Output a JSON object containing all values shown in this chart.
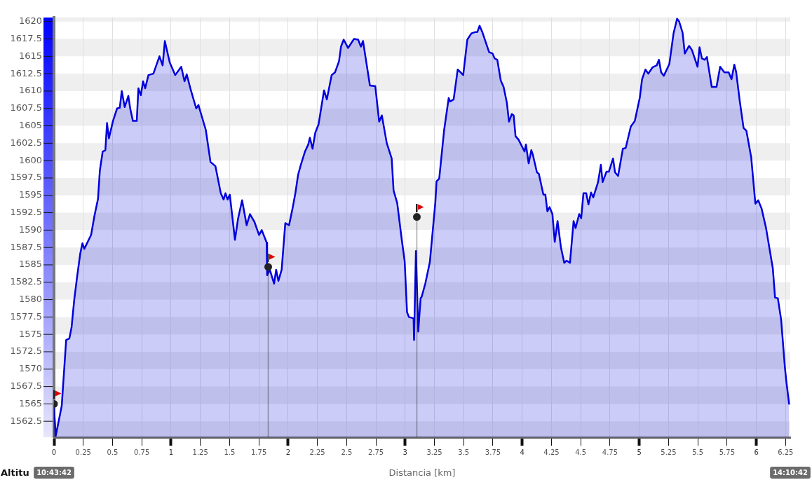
{
  "chart_data": {
    "type": "area",
    "xlabel": "Distancia [km]",
    "ylabel": "Altitu",
    "xlim": [
      0,
      6.29
    ],
    "ylim": [
      1560.2,
      1620.6
    ],
    "xticks": [
      0,
      0.25,
      0.5,
      0.75,
      1,
      1.25,
      1.5,
      1.75,
      2,
      2.25,
      2.5,
      2.75,
      3,
      3.25,
      3.5,
      3.75,
      4,
      4.25,
      4.5,
      4.75,
      5,
      5.25,
      5.5,
      5.75,
      6,
      6.25
    ],
    "yticks": [
      1562.5,
      1565,
      1567.5,
      1570,
      1572.5,
      1575,
      1577.5,
      1580,
      1582.5,
      1585,
      1587.5,
      1590,
      1592.5,
      1595,
      1597.5,
      1600,
      1602.5,
      1605,
      1607.5,
      1610,
      1612.5,
      1615,
      1617.5,
      1620
    ],
    "grid": true,
    "annotations": [
      "10:43:42",
      "14:10:42"
    ],
    "series": [
      {
        "color": "#0000dd",
        "x": [
          0,
          0.015,
          0.066,
          0.104,
          0.131,
          0.15,
          0.173,
          0.196,
          0.224,
          0.243,
          0.259,
          0.317,
          0.345,
          0.376,
          0.392,
          0.416,
          0.439,
          0.453,
          0.469,
          0.504,
          0.539,
          0.562,
          0.579,
          0.604,
          0.635,
          0.651,
          0.674,
          0.707,
          0.721,
          0.742,
          0.761,
          0.779,
          0.807,
          0.849,
          0.901,
          0.928,
          0.947,
          0.989,
          1.036,
          1.087,
          1.115,
          1.134,
          1.168,
          1.215,
          1.234,
          1.297,
          1.337,
          1.379,
          1.425,
          1.449,
          1.465,
          1.483,
          1.502,
          1.546,
          1.572,
          1.607,
          1.646,
          1.674,
          1.712,
          1.752,
          1.775,
          1.817,
          1.821,
          1.844,
          1.88,
          1.898,
          1.917,
          1.945,
          1.976,
          2.008,
          2.039,
          2.062,
          2.086,
          2.109,
          2.144,
          2.172,
          2.186,
          2.209,
          2.232,
          2.26,
          2.307,
          2.331,
          2.372,
          2.401,
          2.435,
          2.452,
          2.475,
          2.512,
          2.563,
          2.598,
          2.622,
          2.64,
          2.699,
          2.745,
          2.778,
          2.801,
          2.843,
          2.885,
          2.901,
          2.932,
          2.972,
          2.996,
          3.016,
          3.032,
          3.072,
          3.076,
          3.092,
          3.112,
          3.132,
          3.141,
          3.172,
          3.211,
          3.258,
          3.268,
          3.291,
          3.333,
          3.372,
          3.384,
          3.414,
          3.449,
          3.473,
          3.496,
          3.531,
          3.566,
          3.601,
          3.617,
          3.636,
          3.659,
          3.717,
          3.747,
          3.764,
          3.787,
          3.817,
          3.841,
          3.869,
          3.887,
          3.911,
          3.927,
          3.943,
          3.969,
          4.02,
          4.032,
          4.055,
          4.078,
          4.09,
          4.126,
          4.142,
          4.181,
          4.198,
          4.215,
          4.234,
          4.258,
          4.278,
          4.302,
          4.331,
          4.359,
          4.379,
          4.408,
          4.439,
          4.456,
          4.487,
          4.504,
          4.523,
          4.547,
          4.566,
          4.588,
          4.607,
          4.648,
          4.672,
          4.687,
          4.72,
          4.74,
          4.776,
          4.793,
          4.819,
          4.86,
          4.884,
          4.928,
          4.962,
          5.005,
          5.024,
          5.053,
          5.077,
          5.113,
          5.149,
          5.168,
          5.187,
          5.21,
          5.257,
          5.293,
          5.323,
          5.341,
          5.37,
          5.389,
          5.426,
          5.45,
          5.498,
          5.515,
          5.535,
          5.559,
          5.578,
          5.619,
          5.66,
          5.691,
          5.727,
          5.764,
          5.788,
          5.812,
          5.828,
          5.859,
          5.891,
          5.915,
          5.956,
          5.992,
          6.016,
          6.045,
          6.083,
          6.141,
          6.16,
          6.184,
          6.212,
          6.244,
          6.256,
          6.28
        ],
        "values": [
          1564.5,
          1560.4,
          1564.7,
          1574.2,
          1574.4,
          1576.0,
          1580.0,
          1583.1,
          1586.6,
          1588.1,
          1587.3,
          1589.3,
          1592.0,
          1594.5,
          1598.6,
          1601.3,
          1601.5,
          1605.4,
          1603.2,
          1605.7,
          1607.5,
          1607.6,
          1610.0,
          1607.7,
          1609.3,
          1607.5,
          1605.7,
          1605.7,
          1610.4,
          1609.4,
          1611.4,
          1610.4,
          1612.3,
          1612.5,
          1615.0,
          1613.7,
          1617.2,
          1614.1,
          1612.3,
          1613.5,
          1611.4,
          1612.4,
          1610.2,
          1607.5,
          1608.0,
          1604.4,
          1599.8,
          1599.2,
          1595.3,
          1594.4,
          1595.3,
          1594.4,
          1595.1,
          1588.6,
          1591.6,
          1594.3,
          1590.7,
          1592.3,
          1591.2,
          1589.3,
          1590.0,
          1588.2,
          1583.5,
          1584.3,
          1582.3,
          1584.3,
          1582.7,
          1584.3,
          1591.0,
          1590.7,
          1593.2,
          1595.3,
          1598.0,
          1599.4,
          1601.3,
          1602.3,
          1603.3,
          1601.7,
          1604.0,
          1605.2,
          1610.1,
          1608.8,
          1612.3,
          1612.7,
          1614.3,
          1616.4,
          1617.4,
          1616.2,
          1617.5,
          1617.4,
          1616.4,
          1617.2,
          1610.8,
          1610.7,
          1605.6,
          1606.5,
          1602.5,
          1600.3,
          1595.7,
          1593.9,
          1588.5,
          1585.5,
          1578.2,
          1577.5,
          1577.3,
          1574.2,
          1587.0,
          1575.4,
          1580.2,
          1580.4,
          1582.3,
          1585.4,
          1594.0,
          1597.0,
          1597.4,
          1604.4,
          1609.0,
          1608.5,
          1608.8,
          1613.1,
          1612.7,
          1612.3,
          1617.4,
          1618.3,
          1618.5,
          1618.5,
          1619.4,
          1618.5,
          1615.6,
          1615.4,
          1614.7,
          1614.5,
          1611.5,
          1610.6,
          1608.3,
          1605.6,
          1606.7,
          1606.5,
          1603.5,
          1603.0,
          1601.3,
          1602.3,
          1599.6,
          1601.5,
          1600.9,
          1598.3,
          1598.1,
          1595.1,
          1595.1,
          1592.7,
          1593.3,
          1592.3,
          1588.3,
          1591.3,
          1587.5,
          1585.3,
          1585.6,
          1585.3,
          1591.3,
          1590.3,
          1592.3,
          1591.7,
          1595.3,
          1595.3,
          1593.7,
          1595.4,
          1594.7,
          1596.9,
          1599.4,
          1596.9,
          1598.4,
          1598.4,
          1600.3,
          1598.3,
          1597.8,
          1601.7,
          1601.8,
          1604.9,
          1605.7,
          1609.1,
          1611.7,
          1613.1,
          1612.5,
          1613.4,
          1613.7,
          1614.5,
          1612.7,
          1612.2,
          1613.9,
          1618.3,
          1620.4,
          1620.0,
          1618.4,
          1615.4,
          1616.5,
          1615.9,
          1613.5,
          1616.3,
          1614.7,
          1614.5,
          1614.9,
          1610.6,
          1610.6,
          1613.5,
          1612.7,
          1612.7,
          1611.7,
          1613.8,
          1612.7,
          1608.5,
          1604.7,
          1604.3,
          1600.5,
          1593.8,
          1594.3,
          1593.1,
          1590.3,
          1584.5,
          1580.3,
          1580.2,
          1577.1,
          1570.3,
          1568.3,
          1565.0
        ]
      },
      {
        "type": "lollipop",
        "color": "#222222",
        "marker": "circle",
        "x": [
          0,
          1.83,
          3.1
        ],
        "values": [
          1565.0,
          1584.7,
          1591.9
        ]
      }
    ]
  }
}
